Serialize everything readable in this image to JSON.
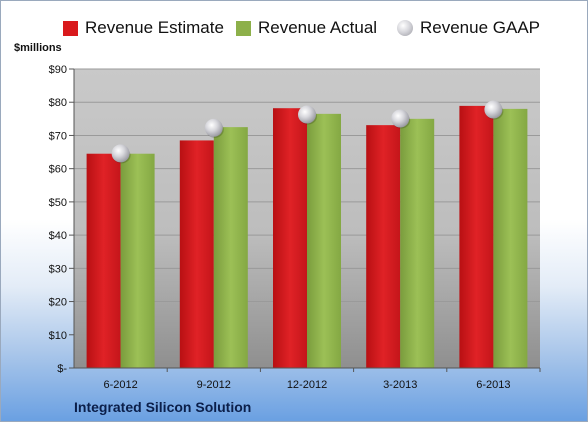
{
  "company": "Integrated Silicon Solution",
  "unit_label": "$millions",
  "legend": [
    {
      "key": "estimate",
      "label": "Revenue Estimate",
      "color": "#d9191c"
    },
    {
      "key": "actual",
      "label": "Revenue Actual",
      "color": "#8db04a"
    },
    {
      "key": "gaap",
      "label": "Revenue GAAP",
      "color": "#c8c8cf"
    }
  ],
  "chart_data": {
    "type": "bar",
    "categories": [
      "6-2012",
      "9-2012",
      "12-2012",
      "3-2013",
      "6-2013"
    ],
    "series": [
      {
        "name": "Revenue Estimate",
        "type": "bar",
        "color": "#d9191c",
        "values": [
          64.5,
          68.5,
          78.2,
          73.1,
          78.9
        ]
      },
      {
        "name": "Revenue Actual",
        "type": "bar",
        "color": "#8db04a",
        "values": [
          64.5,
          72.5,
          76.5,
          75.0,
          78.0
        ]
      },
      {
        "name": "Revenue GAAP",
        "type": "marker",
        "color": "#c8c8cf",
        "values": [
          64.6,
          72.3,
          76.3,
          75.1,
          77.8
        ]
      }
    ],
    "ylabel": "$millions",
    "ylim": [
      0,
      90
    ],
    "yticks": [
      0,
      10,
      20,
      30,
      40,
      50,
      60,
      70,
      80,
      90
    ],
    "ytick_labels": [
      "$-",
      "$10",
      "$20",
      "$30",
      "$40",
      "$50",
      "$60",
      "$70",
      "$80",
      "$90"
    ],
    "grid": true,
    "legend_position": "top"
  }
}
